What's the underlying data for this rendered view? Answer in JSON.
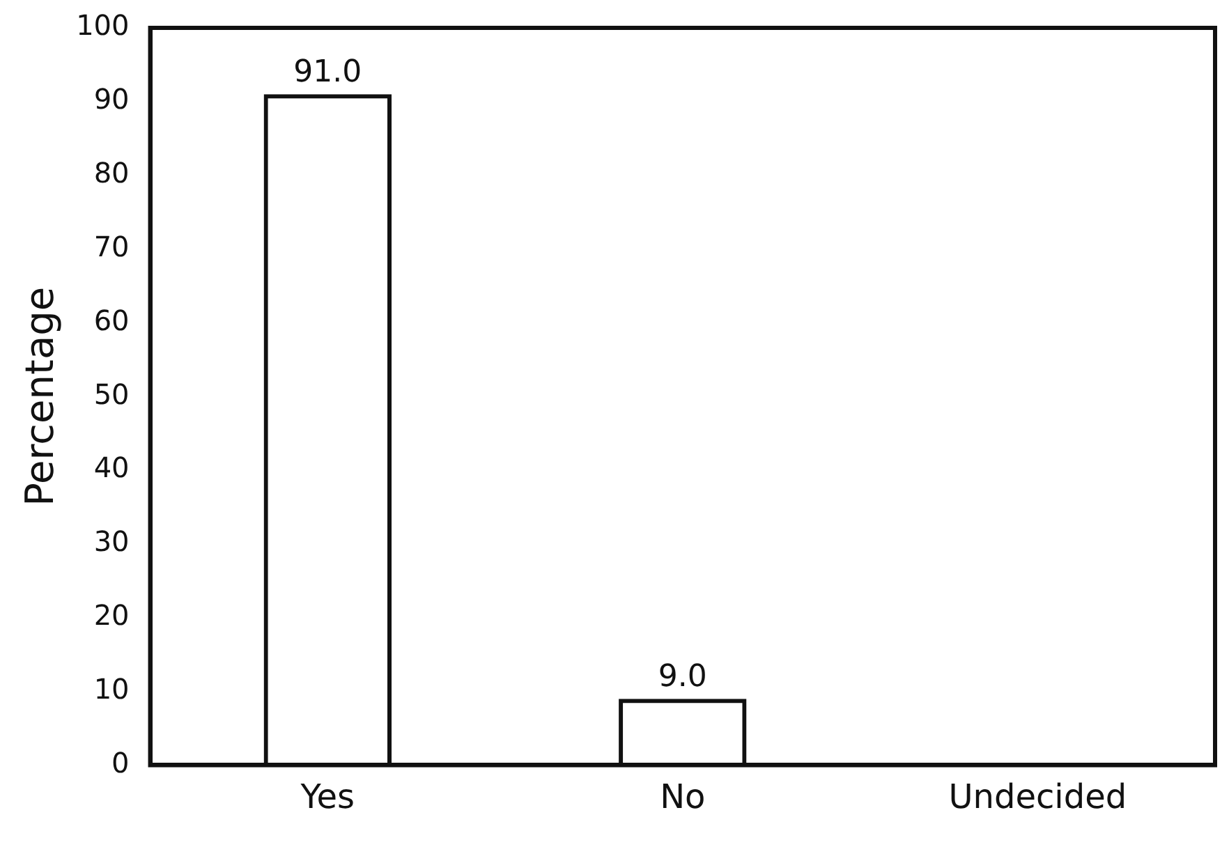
{
  "chart_data": {
    "type": "bar",
    "ylabel": "Percentage",
    "categories": [
      "Yes",
      "No",
      "Undecided"
    ],
    "values": [
      91.0,
      9.0,
      0
    ],
    "value_labels": [
      "91.0",
      "9.0",
      null
    ],
    "color": "#111111",
    "ylim": [
      0,
      100
    ],
    "yticks": [
      0,
      10,
      20,
      30,
      40,
      50,
      60,
      70,
      80,
      90,
      100
    ],
    "grid": false,
    "legend": false
  }
}
